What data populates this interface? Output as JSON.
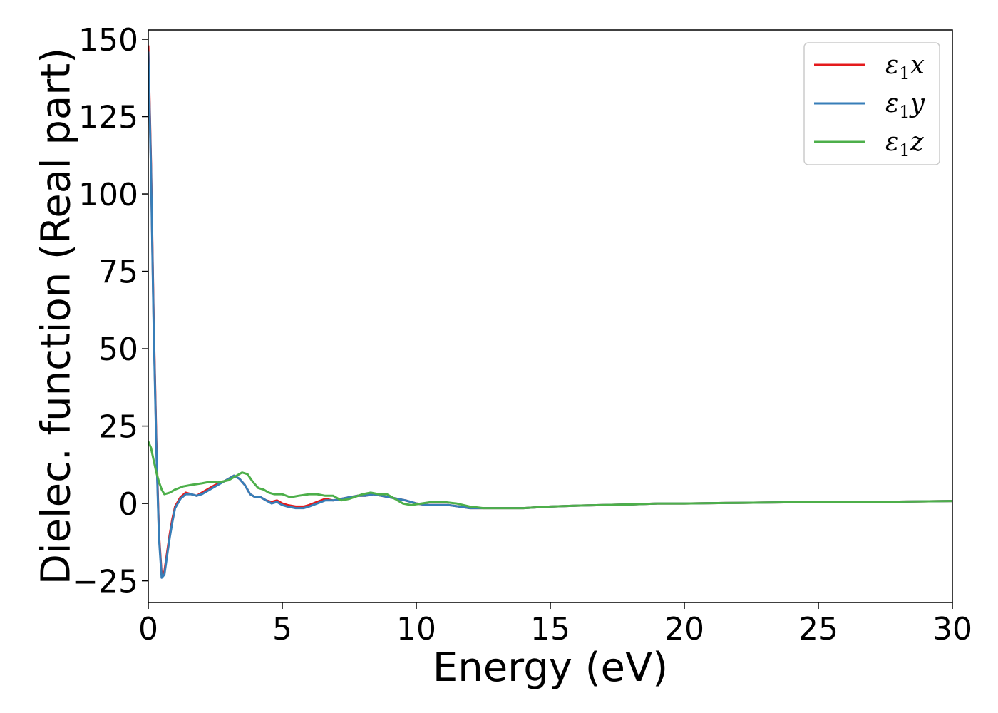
{
  "chart_data": {
    "type": "line",
    "title": "",
    "xlabel": "Energy (eV)",
    "ylabel": "Dielec. function (Real part)",
    "xlim": [
      0,
      30
    ],
    "ylim": [
      -32,
      153
    ],
    "xticks": [
      0,
      5,
      10,
      15,
      20,
      25,
      30
    ],
    "yticks": [
      -25,
      0,
      25,
      50,
      75,
      100,
      125,
      150
    ],
    "xtick_labels": [
      "0",
      "5",
      "10",
      "15",
      "20",
      "25",
      "30"
    ],
    "ytick_labels": [
      "−25",
      "0",
      "25",
      "50",
      "75",
      "100",
      "125",
      "150"
    ],
    "grid": false,
    "legend_position": "top-right",
    "series": [
      {
        "name": "ε₁x",
        "legend": {
          "symbol": "ε",
          "sub": "1",
          "var": "x"
        },
        "color": "#e41a1c",
        "x": [
          0,
          0.1,
          0.2,
          0.3,
          0.4,
          0.5,
          0.6,
          0.7,
          0.8,
          0.9,
          1.0,
          1.2,
          1.4,
          1.6,
          1.8,
          2.0,
          2.2,
          2.5,
          2.8,
          3.0,
          3.2,
          3.4,
          3.6,
          3.8,
          4.0,
          4.2,
          4.4,
          4.6,
          4.8,
          5.0,
          5.2,
          5.5,
          5.8,
          6.0,
          6.3,
          6.6,
          6.9,
          7.2,
          7.5,
          7.8,
          8.1,
          8.4,
          8.7,
          9.0,
          9.3,
          9.6,
          10.0,
          10.4,
          10.8,
          11.2,
          11.6,
          12.0,
          12.5,
          13.0,
          13.5,
          14.0,
          15.0,
          16.0,
          17.0,
          18.0,
          19.0,
          20.0,
          22.0,
          24.0,
          26.0,
          28.0,
          30.0
        ],
        "y": [
          148,
          110,
          60,
          20,
          -10,
          -23,
          -22,
          -16,
          -10,
          -5,
          -1,
          2,
          3.5,
          3,
          2.5,
          3.5,
          4.5,
          6,
          7,
          8,
          9,
          8,
          6,
          3,
          2,
          2,
          1,
          0.5,
          1,
          0,
          -0.5,
          -1,
          -1,
          -0.5,
          0.5,
          1.5,
          1,
          1.5,
          2,
          2.5,
          2.5,
          3,
          2.5,
          2,
          1.5,
          1,
          0,
          -0.5,
          -0.5,
          -0.5,
          -1,
          -1.5,
          -1.5,
          -1.5,
          -1.5,
          -1.5,
          -1,
          -0.7,
          -0.5,
          -0.3,
          0,
          0,
          0.2,
          0.4,
          0.5,
          0.6,
          0.8
        ]
      },
      {
        "name": "ε₁y",
        "legend": {
          "symbol": "ε",
          "sub": "1",
          "var": "y"
        },
        "color": "#377eb8",
        "x": [
          0,
          0.1,
          0.2,
          0.3,
          0.4,
          0.5,
          0.6,
          0.7,
          0.8,
          0.9,
          1.0,
          1.2,
          1.4,
          1.6,
          1.8,
          2.0,
          2.2,
          2.5,
          2.8,
          3.0,
          3.2,
          3.4,
          3.6,
          3.8,
          4.0,
          4.2,
          4.4,
          4.6,
          4.8,
          5.0,
          5.2,
          5.5,
          5.8,
          6.0,
          6.3,
          6.6,
          6.9,
          7.2,
          7.5,
          7.8,
          8.1,
          8.4,
          8.7,
          9.0,
          9.3,
          9.6,
          10.0,
          10.4,
          10.8,
          11.2,
          11.6,
          12.0,
          12.5,
          13.0,
          13.5,
          14.0,
          15.0,
          16.0,
          17.0,
          18.0,
          19.0,
          20.0,
          22.0,
          24.0,
          26.0,
          28.0,
          30.0
        ],
        "y": [
          146,
          108,
          58,
          18,
          -11,
          -24,
          -23,
          -17,
          -11,
          -6,
          -1.5,
          1.5,
          3,
          3,
          2.5,
          3,
          4,
          5.5,
          7,
          8,
          9,
          8,
          6,
          3,
          2,
          2,
          1,
          0,
          0.5,
          -0.5,
          -1,
          -1.5,
          -1.5,
          -1,
          0,
          1,
          1,
          1.5,
          2,
          2.5,
          2.5,
          3,
          2.5,
          2,
          1.5,
          1,
          0,
          -0.5,
          -0.5,
          -0.5,
          -1,
          -1.5,
          -1.5,
          -1.5,
          -1.5,
          -1.5,
          -1,
          -0.7,
          -0.5,
          -0.3,
          0,
          0,
          0.2,
          0.4,
          0.5,
          0.6,
          0.8
        ]
      },
      {
        "name": "ε₁z",
        "legend": {
          "symbol": "ε",
          "sub": "1",
          "var": "z"
        },
        "color": "#4daf4a",
        "x": [
          0,
          0.1,
          0.2,
          0.3,
          0.4,
          0.5,
          0.6,
          0.8,
          1.0,
          1.3,
          1.6,
          2.0,
          2.3,
          2.6,
          3.0,
          3.3,
          3.5,
          3.7,
          3.9,
          4.1,
          4.3,
          4.5,
          4.7,
          5.0,
          5.3,
          5.6,
          6.0,
          6.3,
          6.6,
          6.9,
          7.2,
          7.5,
          8.0,
          8.3,
          8.6,
          8.9,
          9.2,
          9.5,
          9.8,
          10.2,
          10.6,
          11.0,
          11.5,
          12.0,
          12.5,
          13.0,
          13.5,
          14.0,
          15.0,
          16.0,
          17.0,
          18.0,
          19.0,
          20.0,
          22.0,
          24.0,
          26.0,
          28.0,
          30.0
        ],
        "y": [
          20,
          18,
          14,
          10,
          7,
          4.5,
          3,
          3.5,
          4.5,
          5.5,
          6,
          6.5,
          7,
          6.8,
          7.5,
          9,
          10,
          9.5,
          7,
          5,
          4.5,
          3.5,
          3,
          3,
          2,
          2.5,
          3,
          3,
          2.5,
          2.5,
          1,
          1.5,
          3,
          3.5,
          3,
          3,
          1.5,
          0,
          -0.5,
          0,
          0.5,
          0.5,
          0,
          -1,
          -1.5,
          -1.5,
          -1.5,
          -1.5,
          -1,
          -0.7,
          -0.5,
          -0.3,
          0,
          0,
          0.2,
          0.4,
          0.5,
          0.6,
          0.8
        ]
      }
    ]
  }
}
